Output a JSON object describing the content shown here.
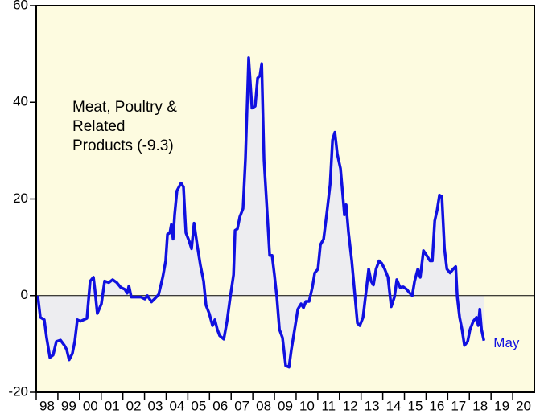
{
  "chart_data": {
    "type": "line",
    "annotation": [
      "Meat, Poultry &",
      "Related",
      "Products (-9.3)"
    ],
    "end_label": "May",
    "color": "#1010e0",
    "fill": "#ededf0",
    "background": "#fdfbe0",
    "x": [
      1998.07,
      1998.19,
      1998.37,
      1998.48,
      1998.63,
      1998.78,
      1998.93,
      1999.12,
      1999.3,
      1999.41,
      1999.52,
      1999.67,
      1999.78,
      1999.9,
      2000.04,
      2000.19,
      2000.34,
      2000.49,
      2000.64,
      2000.71,
      2000.82,
      2001.01,
      2001.16,
      2001.35,
      2001.53,
      2001.72,
      2001.9,
      2002.09,
      2002.2,
      2002.28,
      2002.39,
      2002.57,
      2002.83,
      2003.02,
      2003.13,
      2003.32,
      2003.46,
      2003.65,
      2003.84,
      2003.98,
      2004.06,
      2004.17,
      2004.24,
      2004.32,
      2004.39,
      2004.5,
      2004.69,
      2004.8,
      2004.91,
      2005.06,
      2005.17,
      2005.29,
      2005.43,
      2005.58,
      2005.73,
      2005.84,
      2005.99,
      2006.14,
      2006.25,
      2006.36,
      2006.47,
      2006.66,
      2006.81,
      2006.96,
      2007.11,
      2007.18,
      2007.29,
      2007.4,
      2007.55,
      2007.66,
      2007.81,
      2007.96,
      2008.11,
      2008.22,
      2008.33,
      2008.41,
      2008.52,
      2008.63,
      2008.78,
      2008.89,
      2009.0,
      2009.11,
      2009.23,
      2009.37,
      2009.52,
      2009.67,
      2009.78,
      2009.93,
      2010.08,
      2010.23,
      2010.34,
      2010.45,
      2010.6,
      2010.75,
      2010.86,
      2011.01,
      2011.12,
      2011.27,
      2011.42,
      2011.57,
      2011.68,
      2011.79,
      2011.9,
      2012.05,
      2012.16,
      2012.23,
      2012.31,
      2012.42,
      2012.57,
      2012.72,
      2012.83,
      2012.94,
      2013.09,
      2013.24,
      2013.35,
      2013.46,
      2013.57,
      2013.69,
      2013.83,
      2013.95,
      2014.09,
      2014.24,
      2014.39,
      2014.54,
      2014.65,
      2014.8,
      2014.95,
      2015.1,
      2015.25,
      2015.36,
      2015.47,
      2015.62,
      2015.73,
      2015.88,
      2016.03,
      2016.18,
      2016.29,
      2016.4,
      2016.51,
      2016.62,
      2016.73,
      2016.85,
      2016.96,
      2017.11,
      2017.25,
      2017.37,
      2017.44,
      2017.55,
      2017.66,
      2017.77,
      2017.92,
      2018.03,
      2018.18,
      2018.33,
      2018.41,
      2018.48,
      2018.56,
      2018.67
    ],
    "values": [
      0,
      -4.5,
      -5,
      -8.7,
      -12.8,
      -12.3,
      -9.5,
      -9.2,
      -10.3,
      -11.2,
      -13.3,
      -12,
      -9.5,
      -5,
      -5.3,
      -5,
      -4.7,
      3,
      3.8,
      1.3,
      -3.7,
      -1.7,
      3,
      2.7,
      3.3,
      2.7,
      1.7,
      1.3,
      0.5,
      2,
      -0.3,
      -0.3,
      -0.3,
      -0.7,
      0,
      -1.3,
      -0.7,
      0.2,
      3.8,
      7.2,
      12.7,
      13,
      14.7,
      11.7,
      16.7,
      21.7,
      23.3,
      22.5,
      13,
      11.3,
      9.7,
      15,
      10.5,
      6.3,
      3,
      -2,
      -3.7,
      -6.2,
      -5,
      -7,
      -8.3,
      -9,
      -5.3,
      -0.3,
      4.3,
      13.5,
      13.8,
      16.3,
      18,
      28.3,
      49.2,
      38.8,
      39.2,
      45,
      45.5,
      48,
      28,
      19.7,
      8.3,
      8.3,
      4.3,
      -0.3,
      -7,
      -8.7,
      -14.5,
      -14.8,
      -11.2,
      -7,
      -2.8,
      -1.7,
      -2.5,
      -1.2,
      -1.2,
      1.7,
      4.7,
      5.5,
      10.5,
      11.7,
      17.2,
      23,
      32.2,
      33.8,
      29.3,
      26.3,
      20.5,
      16.7,
      18.8,
      13,
      7.2,
      -0.3,
      -5.7,
      -6.2,
      -4.5,
      1.3,
      5.5,
      3,
      2.2,
      5.5,
      7.2,
      6.7,
      5.5,
      3.8,
      -2.3,
      -0.3,
      3.3,
      1.7,
      1.8,
      1.3,
      0.5,
      0,
      3,
      5.5,
      3.8,
      9.3,
      8.3,
      7.2,
      7.2,
      15.5,
      17.7,
      20.8,
      20.5,
      9.7,
      5.5,
      4.7,
      5.5,
      6,
      -0.3,
      -4.5,
      -7,
      -10.3,
      -9.5,
      -7,
      -5.3,
      -4.5,
      -6.2,
      -2.8,
      -7,
      -9.3
    ],
    "xlim": [
      1998,
      2021
    ],
    "xticks": [
      {
        "value": 1998,
        "label": "98"
      },
      {
        "value": 1999,
        "label": "99"
      },
      {
        "value": 2000,
        "label": "00"
      },
      {
        "value": 2001,
        "label": "01"
      },
      {
        "value": 2002,
        "label": "02"
      },
      {
        "value": 2003,
        "label": "03"
      },
      {
        "value": 2004,
        "label": "04"
      },
      {
        "value": 2005,
        "label": "05"
      },
      {
        "value": 2006,
        "label": "06"
      },
      {
        "value": 2007,
        "label": "07"
      },
      {
        "value": 2008,
        "label": "08"
      },
      {
        "value": 2009,
        "label": "09"
      },
      {
        "value": 2010,
        "label": "10"
      },
      {
        "value": 2011,
        "label": "11"
      },
      {
        "value": 2012,
        "label": "12"
      },
      {
        "value": 2013,
        "label": "13"
      },
      {
        "value": 2014,
        "label": "14"
      },
      {
        "value": 2015,
        "label": "15"
      },
      {
        "value": 2016,
        "label": "16"
      },
      {
        "value": 2017,
        "label": "17"
      },
      {
        "value": 2018,
        "label": "18"
      },
      {
        "value": 2019,
        "label": "19"
      },
      {
        "value": 2020,
        "label": "20"
      }
    ],
    "ylim": [
      -20,
      60
    ],
    "yticks": [
      -20,
      0,
      20,
      40,
      60
    ]
  }
}
